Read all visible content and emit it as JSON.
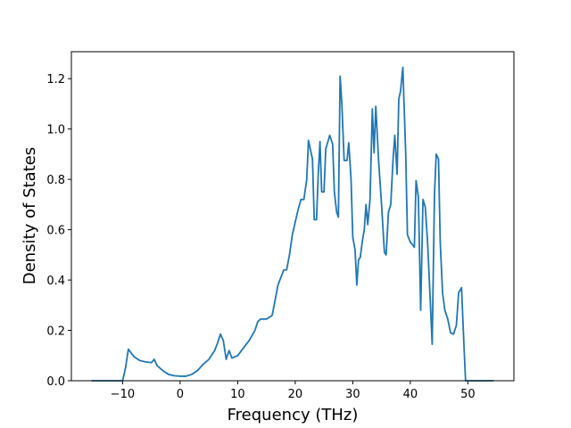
{
  "chart_data": {
    "type": "line",
    "xlabel": "Frequency (THz)",
    "ylabel": "Density of States",
    "color": "#1f77b4",
    "x": [
      -15.4,
      -10,
      -9.5,
      -9,
      -8,
      -7,
      -6,
      -5,
      -4.5,
      -4,
      -3,
      -2,
      -1,
      0,
      1,
      2,
      3,
      4,
      5,
      6,
      6.5,
      7,
      7.5,
      8,
      8.5,
      9,
      10,
      11,
      12,
      13,
      13.5,
      14,
      15,
      16,
      17,
      18,
      18.5,
      19,
      19.5,
      20,
      20.5,
      21,
      21.5,
      22,
      22.3,
      23,
      23.3,
      23.7,
      24,
      24.3,
      24.6,
      25,
      25.3,
      26,
      26.5,
      26.8,
      27.2,
      27.5,
      27.8,
      28.1,
      28.5,
      29,
      29.3,
      29.7,
      30,
      30.4,
      30.7,
      31,
      31.3,
      31.7,
      32,
      32.3,
      32.6,
      33,
      33.4,
      33.7,
      34,
      34.5,
      35,
      35.5,
      35.8,
      36.2,
      36.6,
      37,
      37.3,
      37.7,
      38,
      38.3,
      38.7,
      39.2,
      39.5,
      40,
      40.4,
      40.7,
      41,
      41.4,
      41.8,
      42.2,
      42.6,
      43,
      43.5,
      43.8,
      44.2,
      44.5,
      44.9,
      45.2,
      45.6,
      46,
      46.5,
      47,
      47.5,
      48,
      48.4,
      48.9,
      49.3,
      49.6,
      54.5
    ],
    "y": [
      0,
      0,
      0.05,
      0.125,
      0.095,
      0.08,
      0.075,
      0.072,
      0.085,
      0.06,
      0.04,
      0.025,
      0.02,
      0.018,
      0.018,
      0.025,
      0.04,
      0.065,
      0.085,
      0.12,
      0.15,
      0.185,
      0.16,
      0.085,
      0.12,
      0.09,
      0.1,
      0.13,
      0.16,
      0.2,
      0.235,
      0.245,
      0.245,
      0.26,
      0.38,
      0.44,
      0.44,
      0.5,
      0.58,
      0.63,
      0.68,
      0.72,
      0.72,
      0.8,
      0.955,
      0.88,
      0.64,
      0.64,
      0.82,
      0.95,
      0.75,
      0.75,
      0.92,
      0.975,
      0.94,
      0.75,
      0.67,
      0.65,
      1.21,
      1.1,
      0.875,
      0.875,
      0.945,
      0.8,
      0.57,
      0.52,
      0.38,
      0.48,
      0.49,
      0.56,
      0.6,
      0.7,
      0.62,
      0.72,
      1.08,
      0.905,
      1.09,
      0.87,
      0.7,
      0.51,
      0.5,
      0.67,
      0.7,
      0.88,
      0.975,
      0.82,
      1.12,
      1.15,
      1.245,
      0.9,
      0.58,
      0.55,
      0.54,
      0.53,
      0.795,
      0.73,
      0.28,
      0.72,
      0.69,
      0.55,
      0.3,
      0.145,
      0.74,
      0.9,
      0.88,
      0.55,
      0.35,
      0.28,
      0.245,
      0.19,
      0.185,
      0.22,
      0.35,
      0.37,
      0.15,
      0,
      0
    ],
    "xlim": [
      -18.9,
      58.0
    ],
    "ylim": [
      0,
      1.307
    ],
    "xticks": [
      {
        "value": -10,
        "label": "−10"
      },
      0,
      10,
      20,
      30,
      40,
      50
    ],
    "yticks": [
      {
        "value": 0,
        "label": "0.0"
      },
      {
        "value": 0.2,
        "label": "0.2"
      },
      {
        "value": 0.4,
        "label": "0.4"
      },
      {
        "value": 0.6,
        "label": "0.6"
      },
      {
        "value": 0.8,
        "label": "0.8"
      },
      {
        "value": 1.0,
        "label": "1.0"
      },
      {
        "value": 1.2,
        "label": "1.2"
      }
    ]
  }
}
